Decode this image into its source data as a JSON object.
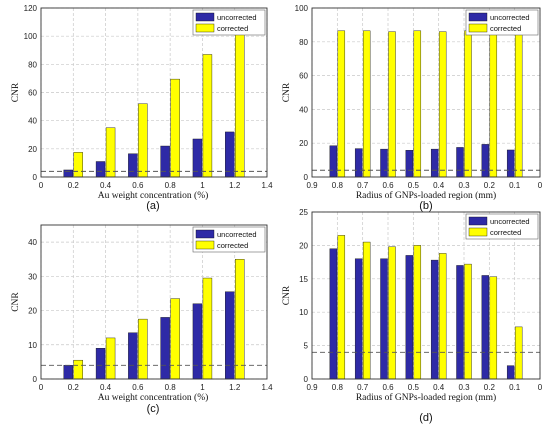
{
  "chart_data": [
    {
      "type": "bar",
      "panel_label": "(a)",
      "x": [
        0.2,
        0.4,
        0.6,
        0.8,
        1.0,
        1.2
      ],
      "xlim": [
        0,
        1.4
      ],
      "xticks": [
        "0",
        "0.2",
        "0.4",
        "0.6",
        "0.8",
        "1",
        "1.2",
        "1.4"
      ],
      "ylim": [
        0,
        120
      ],
      "yticks": [
        "0",
        "20",
        "40",
        "60",
        "80",
        "100",
        "120"
      ],
      "series": [
        {
          "name": "uncorrected",
          "values": [
            5,
            11,
            16.5,
            22,
            27,
            32
          ]
        },
        {
          "name": "corrected",
          "values": [
            17.5,
            35,
            52,
            69.5,
            87,
            104.5
          ]
        }
      ],
      "threshold": 4,
      "xlabel": "Au weight concentration (%)",
      "ylabel": "CNR",
      "grid": true,
      "legend": "top-right"
    },
    {
      "type": "bar",
      "panel_label": "(b)",
      "x": [
        0.8,
        0.7,
        0.6,
        0.5,
        0.4,
        0.3,
        0.2,
        0.1
      ],
      "xlim": [
        0.9,
        0
      ],
      "xticks": [
        "0.9",
        "0.8",
        "0.7",
        "0.6",
        "0.5",
        "0.4",
        "0.3",
        "0.2",
        "0.1",
        "0"
      ],
      "ylim": [
        0,
        100
      ],
      "yticks": [
        "0",
        "20",
        "40",
        "60",
        "80",
        "100"
      ],
      "series": [
        {
          "name": "uncorrected",
          "values": [
            18.5,
            16.8,
            16.5,
            15.8,
            16.5,
            17.5,
            19.3,
            16
          ]
        },
        {
          "name": "corrected",
          "values": [
            86.5,
            86.5,
            86,
            86.5,
            86,
            86.5,
            86,
            86.5
          ]
        }
      ],
      "threshold": 4,
      "xlabel": "Radius of GNPs-loaded region (mm)",
      "ylabel": "CNR",
      "grid": true,
      "legend": "top-right"
    },
    {
      "type": "bar",
      "panel_label": "(c)",
      "x": [
        0.2,
        0.4,
        0.6,
        0.8,
        1.0,
        1.2
      ],
      "xlim": [
        0,
        1.4
      ],
      "xticks": [
        "0",
        "0.2",
        "0.4",
        "0.6",
        "0.8",
        "1",
        "1.2",
        "1.4"
      ],
      "ylim": [
        0,
        45
      ],
      "yticks": [
        "0",
        "10",
        "20",
        "30",
        "40"
      ],
      "series": [
        {
          "name": "uncorrected",
          "values": [
            4,
            9,
            13.5,
            18,
            22,
            25.5
          ]
        },
        {
          "name": "corrected",
          "values": [
            5.5,
            12,
            17.5,
            23.5,
            29.5,
            35
          ]
        }
      ],
      "threshold": 4,
      "xlabel": "Au weight concentration (%)",
      "ylabel": "CNR",
      "grid": true,
      "legend": "top-right"
    },
    {
      "type": "bar",
      "panel_label": "(d)",
      "x": [
        0.8,
        0.7,
        0.6,
        0.5,
        0.4,
        0.3,
        0.2,
        0.1
      ],
      "xlim": [
        0.9,
        0
      ],
      "xticks": [
        "0.9",
        "0.8",
        "0.7",
        "0.6",
        "0.5",
        "0.4",
        "0.3",
        "0.2",
        "0.1",
        "0"
      ],
      "ylim": [
        0,
        25
      ],
      "yticks": [
        "0",
        "5",
        "10",
        "15",
        "20",
        "25"
      ],
      "series": [
        {
          "name": "uncorrected",
          "values": [
            19.5,
            18,
            18,
            18.5,
            17.8,
            17,
            15.5,
            2
          ]
        },
        {
          "name": "corrected",
          "values": [
            21.5,
            20.5,
            19.8,
            20,
            18.8,
            17.2,
            15.3,
            7.8
          ]
        }
      ],
      "threshold": 4,
      "xlabel": "Radius of GNPs-loaded region (mm)",
      "ylabel": "CNR",
      "grid": true,
      "legend": "top-right"
    }
  ],
  "colors": {
    "uncorrected": "#2e2aa6",
    "corrected": "#ffff00",
    "grid": "#c8c8c8",
    "threshold": "#555555"
  }
}
